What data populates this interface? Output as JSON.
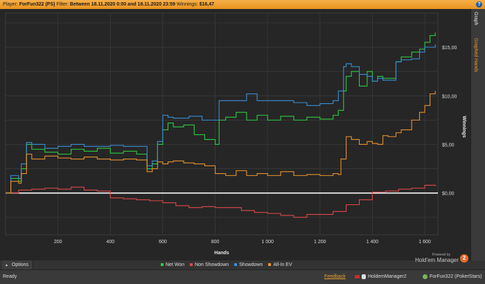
{
  "titlebar": {
    "player_label": "Player:",
    "player": "ForFun322 (PS)",
    "filter_label": "Filter:",
    "filter": "Between 18.11.2020 0:00 and 18.11.2020 23:59",
    "winnings_label": "Winnings:",
    "winnings": "$16,47",
    "help_icon": "?"
  },
  "side_tabs": [
    "Graph",
    "Graphed Hands"
  ],
  "options_label": "Options",
  "options_icon": "▲",
  "branding": {
    "powered_by": "Powered by",
    "product": "Hold'em Manager",
    "logo_text": "2"
  },
  "status": {
    "ready": "Ready",
    "feedback": "Feedback",
    "database": "HoldemManager2",
    "player": "ForFun322 (PokerStars)"
  },
  "colors": {
    "net_won": "#2ecc40",
    "non_showdown": "#e04848",
    "showdown": "#3a8fd8",
    "allin_ev": "#e8922e",
    "zero_line": "#ffffff",
    "accent": "#e89a2a"
  },
  "chart_data": {
    "type": "line",
    "xlabel": "Hands",
    "ylabel": "Winnings",
    "x_ticks": [
      "200",
      "400",
      "600",
      "800",
      "1 000",
      "1 200",
      "1 400",
      "1 600"
    ],
    "x_tick_values": [
      200,
      400,
      600,
      800,
      1000,
      1200,
      1400,
      1600
    ],
    "y_ticks": [
      "$0,00",
      "$5,00",
      "$10,00",
      "$15,00"
    ],
    "y_tick_values": [
      0,
      5,
      10,
      15
    ],
    "xlim": [
      0,
      1650
    ],
    "ylim": [
      -4.3,
      18.5
    ],
    "grid": true,
    "legend_position": "bottom",
    "series": [
      {
        "name": "Net Won",
        "color": "#2ecc40",
        "x": [
          0,
          20,
          50,
          60,
          80,
          100,
          150,
          200,
          250,
          300,
          350,
          400,
          450,
          500,
          540,
          560,
          580,
          600,
          620,
          640,
          680,
          720,
          760,
          800,
          815,
          840,
          880,
          920,
          960,
          1000,
          1050,
          1100,
          1150,
          1200,
          1250,
          1270,
          1290,
          1300,
          1320,
          1350,
          1380,
          1400,
          1420,
          1440,
          1460,
          1490,
          1510,
          1550,
          1580,
          1600,
          1620,
          1640
        ],
        "y": [
          0,
          1.5,
          1.2,
          2.5,
          5.0,
          4.5,
          4.2,
          4.0,
          4.5,
          4.3,
          4.6,
          4.1,
          4.3,
          4.0,
          2.5,
          3.0,
          5.0,
          6.5,
          7.2,
          6.8,
          7.0,
          6.0,
          5.5,
          5.0,
          7.5,
          7.8,
          8.3,
          7.5,
          8.0,
          7.5,
          7.9,
          7.5,
          7.8,
          7.6,
          8.0,
          8.5,
          10.5,
          12.0,
          12.5,
          11.0,
          12.5,
          11.5,
          12.0,
          11.8,
          11.8,
          13.5,
          14.0,
          14.5,
          14.8,
          15.5,
          16.2,
          16.5
        ]
      },
      {
        "name": "Non Showdown",
        "color": "#e04848",
        "x": [
          0,
          50,
          100,
          150,
          200,
          250,
          300,
          350,
          400,
          450,
          500,
          550,
          600,
          650,
          700,
          750,
          800,
          850,
          900,
          950,
          1000,
          1050,
          1100,
          1150,
          1200,
          1250,
          1300,
          1350,
          1400,
          1450,
          1500,
          1550,
          1600,
          1640
        ],
        "y": [
          0,
          0.3,
          0.4,
          0.5,
          0.4,
          0.6,
          0.3,
          0.2,
          -0.5,
          -0.6,
          -0.7,
          -0.8,
          -1.0,
          -1.3,
          -1.5,
          -1.4,
          -1.5,
          -1.5,
          -1.8,
          -2.0,
          -2.1,
          -2.3,
          -2.5,
          -2.2,
          -2.2,
          -1.9,
          -1.2,
          -0.7,
          0.1,
          0.2,
          0.4,
          0.5,
          0.8,
          0.7
        ]
      },
      {
        "name": "Showdown",
        "color": "#3a8fd8",
        "x": [
          0,
          20,
          50,
          60,
          80,
          100,
          150,
          200,
          250,
          300,
          350,
          400,
          450,
          500,
          540,
          560,
          580,
          600,
          620,
          640,
          700,
          750,
          800,
          815,
          840,
          880,
          920,
          960,
          1000,
          1050,
          1100,
          1150,
          1200,
          1250,
          1270,
          1290,
          1300,
          1320,
          1350,
          1380,
          1400,
          1420,
          1440,
          1460,
          1490,
          1510,
          1550,
          1580,
          1600,
          1620,
          1640
        ],
        "y": [
          0,
          1.8,
          1.5,
          3.0,
          5.2,
          5.0,
          4.6,
          4.8,
          5.0,
          4.8,
          4.8,
          4.9,
          4.8,
          4.8,
          2.8,
          3.3,
          5.3,
          8.0,
          7.8,
          7.7,
          7.9,
          7.5,
          7.5,
          9.5,
          9.5,
          9.5,
          10.2,
          9.5,
          9.5,
          9.5,
          9.3,
          9.0,
          9.2,
          9.5,
          10.5,
          13.0,
          13.3,
          13.0,
          12.2,
          12.0,
          11.5,
          11.8,
          11.6,
          11.6,
          13.5,
          13.7,
          13.8,
          14.5,
          15.0,
          15.0,
          15.3
        ]
      },
      {
        "name": "All-In EV",
        "color": "#e8922e",
        "x": [
          0,
          20,
          50,
          60,
          80,
          100,
          150,
          200,
          250,
          300,
          350,
          400,
          450,
          500,
          540,
          560,
          580,
          600,
          620,
          640,
          680,
          720,
          760,
          800,
          840,
          880,
          920,
          960,
          1000,
          1050,
          1100,
          1150,
          1200,
          1250,
          1270,
          1280,
          1300,
          1320,
          1350,
          1380,
          1400,
          1420,
          1440,
          1460,
          1490,
          1510,
          1550,
          1580,
          1600,
          1620,
          1640
        ],
        "y": [
          0,
          1.2,
          1.0,
          2.0,
          4.0,
          3.5,
          3.8,
          3.6,
          3.5,
          3.7,
          3.5,
          3.4,
          3.5,
          3.4,
          2.2,
          2.5,
          3.2,
          3.0,
          3.2,
          3.3,
          3.1,
          3.0,
          2.8,
          2.0,
          1.8,
          2.3,
          1.8,
          2.0,
          1.8,
          2.2,
          1.8,
          1.9,
          1.8,
          2.0,
          1.9,
          3.5,
          5.8,
          5.5,
          5.0,
          5.3,
          5.1,
          5.0,
          5.9,
          5.8,
          6.2,
          6.5,
          7.5,
          8.3,
          9.0,
          10.2,
          10.5
        ]
      }
    ]
  }
}
